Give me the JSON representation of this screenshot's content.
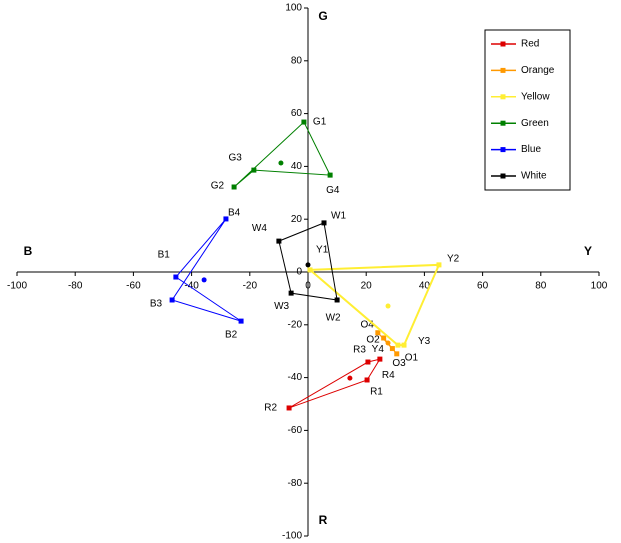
{
  "chart_data": {
    "type": "scatter",
    "axis_labels": {
      "left": "B",
      "right": "Y",
      "top": "G",
      "bottom": "R"
    },
    "xlim": [
      -100,
      100
    ],
    "ylim": [
      -100,
      100
    ],
    "xticks": [
      -100,
      -80,
      -60,
      -40,
      -20,
      0,
      20,
      40,
      60,
      80,
      100
    ],
    "yticks": [
      -100,
      -80,
      -60,
      -40,
      -20,
      0,
      20,
      40,
      60,
      80,
      100
    ],
    "series": [
      {
        "name": "Red",
        "color": "#dd0000",
        "labels": [
          "R1",
          "R2",
          "R3",
          "R4"
        ],
        "x": [
          20.3,
          -6.5,
          20.6,
          24.7
        ],
        "y": [
          -40.9,
          -51.5,
          -34.1,
          -33
        ],
        "center_x": 14.4,
        "center_y": -40.2
      },
      {
        "name": "Orange",
        "color": "#ff9900",
        "labels": [
          "O1",
          "O2",
          "O3",
          "O4"
        ],
        "x": [
          30.5,
          26,
          29,
          24
        ],
        "y": [
          -31,
          -25,
          -29,
          -23
        ],
        "center_x": 27.5,
        "center_y": -26.9
      },
      {
        "name": "Yellow",
        "color": "#ffee33",
        "labels": [
          "Y1",
          "Y2",
          "Y3",
          "Y4"
        ],
        "x": [
          0.7,
          45,
          33,
          30.9
        ],
        "y": [
          0.8,
          2.7,
          -27.7,
          -27.7
        ],
        "center_x": 27.5,
        "center_y": -12.9
      },
      {
        "name": "Green",
        "color": "#008000",
        "labels": [
          "G1",
          "G2",
          "G3",
          "G4"
        ],
        "x": [
          -1.4,
          -25.4,
          -18.6,
          7.6
        ],
        "y": [
          56.8,
          32.2,
          38.6,
          36.7
        ],
        "center_x": -9.3,
        "center_y": 41.3
      },
      {
        "name": "Blue",
        "color": "#0000ff",
        "labels": [
          "B1",
          "B2",
          "B3",
          "B4"
        ],
        "x": [
          -45.4,
          -23,
          -46.7,
          -28.2
        ],
        "y": [
          -1.9,
          -18.6,
          -10.6,
          20.1
        ],
        "center_x": -35.7,
        "center_y": -3
      },
      {
        "name": "White",
        "color": "#000000",
        "labels": [
          "W1",
          "W2",
          "W3",
          "W4"
        ],
        "x": [
          5.5,
          10,
          -5.8,
          -10
        ],
        "y": [
          18.6,
          -10.6,
          -8,
          11.7
        ],
        "center_x": 0,
        "center_y": 2.7
      }
    ]
  }
}
